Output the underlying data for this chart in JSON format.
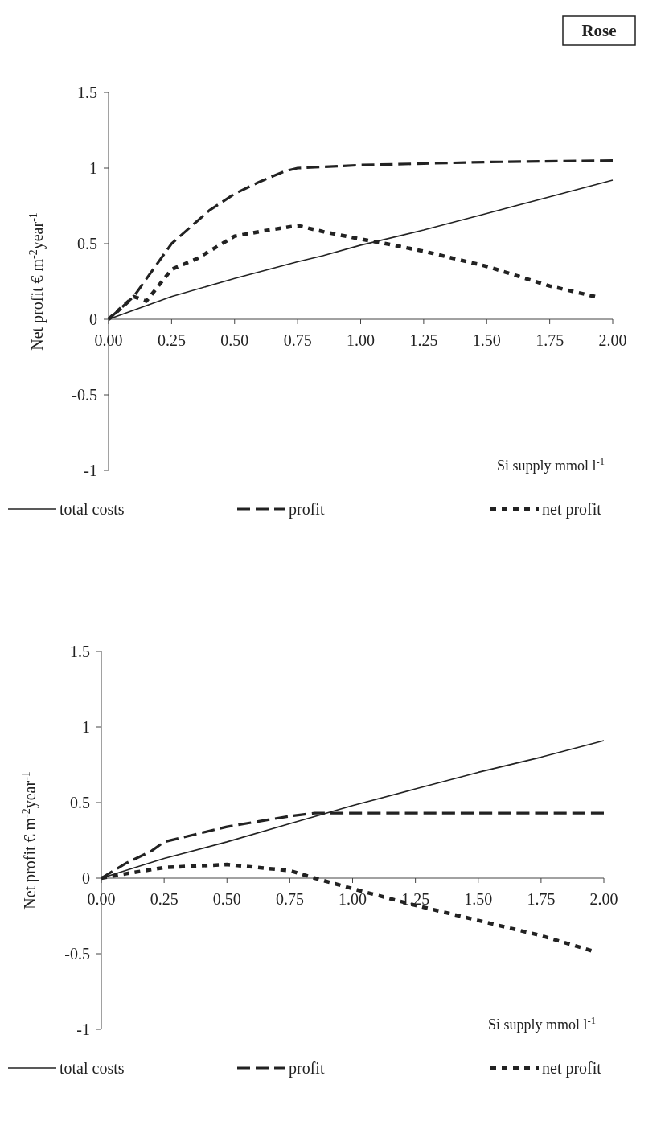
{
  "chart_data": [
    {
      "type": "line",
      "title": "Rose",
      "xlabel": "Si supply mmol l$^{-1}$",
      "ylabel": "Net profit € m$^{-2}$year$^{-1}$",
      "xlim": [
        0,
        2
      ],
      "xticks": [
        {
          "value": 0,
          "label": "0.00"
        },
        {
          "value": 0.25,
          "label": "0.25"
        },
        {
          "value": 0.5,
          "label": "0.50"
        },
        {
          "value": 0.75,
          "label": "0.75"
        },
        {
          "value": 1,
          "label": "1.00"
        },
        {
          "value": 1.25,
          "label": "1.25"
        },
        {
          "value": 1.5,
          "label": "1.50"
        },
        {
          "value": 1.75,
          "label": "1.75"
        },
        {
          "value": 2,
          "label": "2.00"
        }
      ],
      "ylim": [
        -1,
        1.5
      ],
      "yticks": [
        -1,
        -0.5,
        0,
        0.5,
        1,
        1.5
      ],
      "grid": false,
      "legend": "bottom",
      "series": [
        {
          "name": "total costs",
          "color": "#222222",
          "line_style": "solid",
          "x": [
            0,
            0.25,
            0.5,
            0.75,
            0.85,
            1,
            1.25,
            1.5,
            1.75,
            2
          ],
          "values": [
            0,
            0.15,
            0.27,
            0.38,
            0.42,
            0.49,
            0.59,
            0.7,
            0.81,
            0.92
          ]
        },
        {
          "name": "profit",
          "color": "#222222",
          "line_style": "dashed",
          "x": [
            0,
            0.1,
            0.25,
            0.4,
            0.5,
            0.6,
            0.7,
            0.75,
            1,
            1.25,
            1.5,
            2
          ],
          "values": [
            0,
            0.15,
            0.5,
            0.72,
            0.83,
            0.91,
            0.98,
            1,
            1.02,
            1.03,
            1.04,
            1.05
          ]
        },
        {
          "name": "net profit",
          "color": "#222222",
          "line_style": "dotted",
          "x": [
            0,
            0.1,
            0.15,
            0.25,
            0.35,
            0.5,
            0.6,
            0.75,
            0.85,
            1,
            1.1,
            1.25,
            1.5,
            1.75,
            1.93
          ],
          "values": [
            0,
            0.15,
            0.12,
            0.33,
            0.4,
            0.55,
            0.58,
            0.62,
            0.58,
            0.53,
            0.5,
            0.45,
            0.35,
            0.22,
            0.15
          ]
        }
      ]
    },
    {
      "type": "line",
      "xlabel": "Si supply mmol l$^{-1}$",
      "ylabel": "Net profit € m$^{-2}$year$^{-1}$",
      "xlim": [
        0,
        2
      ],
      "xticks": [
        {
          "value": 0,
          "label": "0.00"
        },
        {
          "value": 0.25,
          "label": "0.25"
        },
        {
          "value": 0.5,
          "label": "0.50"
        },
        {
          "value": 0.75,
          "label": "0.75"
        },
        {
          "value": 1,
          "label": "1.00"
        },
        {
          "value": 1.25,
          "label": "1.25"
        },
        {
          "value": 1.5,
          "label": "1.50"
        },
        {
          "value": 1.75,
          "label": "1.75"
        },
        {
          "value": 2,
          "label": "2.00"
        }
      ],
      "ylim": [
        -1,
        1.5
      ],
      "yticks": [
        -1,
        -0.5,
        0,
        0.5,
        1,
        1.5
      ],
      "grid": false,
      "legend": "bottom",
      "series": [
        {
          "name": "total costs",
          "color": "#222222",
          "line_style": "solid",
          "x": [
            0,
            0.25,
            0.5,
            0.75,
            1,
            1.25,
            1.5,
            1.75,
            2
          ],
          "values": [
            0,
            0.13,
            0.24,
            0.36,
            0.48,
            0.59,
            0.7,
            0.8,
            0.91
          ]
        },
        {
          "name": "profit",
          "color": "#222222",
          "line_style": "dashed",
          "x": [
            0,
            0.1,
            0.2,
            0.25,
            0.5,
            0.75,
            0.85,
            1,
            1.5,
            2
          ],
          "values": [
            0,
            0.1,
            0.18,
            0.24,
            0.34,
            0.41,
            0.43,
            0.43,
            0.43,
            0.43
          ]
        },
        {
          "name": "net profit",
          "color": "#222222",
          "line_style": "dotted",
          "x": [
            0,
            0.1,
            0.25,
            0.5,
            0.75,
            0.85,
            1,
            1.25,
            1.5,
            1.75,
            1.95
          ],
          "values": [
            0,
            0.03,
            0.07,
            0.09,
            0.05,
            0,
            -0.07,
            -0.18,
            -0.28,
            -0.38,
            -0.48
          ]
        }
      ]
    }
  ]
}
